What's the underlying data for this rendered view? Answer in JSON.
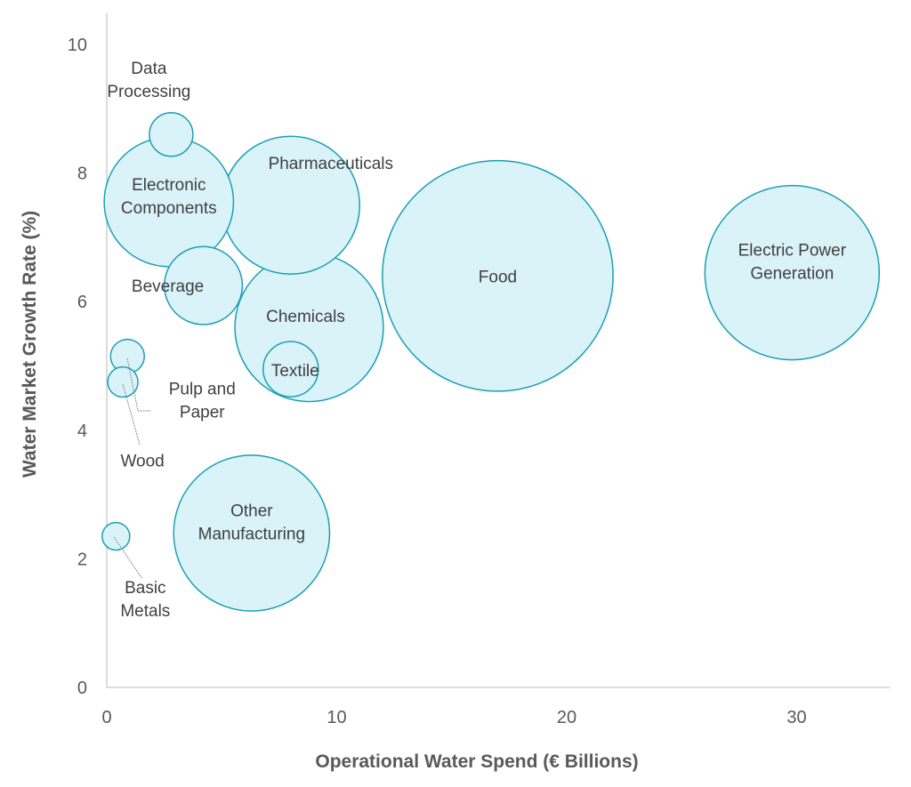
{
  "chart_data": {
    "type": "bubble",
    "xlabel": "Operational Water Spend (€ Billions)",
    "ylabel": "Water Market Growth Rate (%)",
    "xlim": [
      0,
      34
    ],
    "ylim": [
      0,
      10
    ],
    "xticks": [
      "0",
      "10",
      "20",
      "30"
    ],
    "yticks": [
      "0",
      "2",
      "4",
      "6",
      "8",
      "10"
    ],
    "grid": false,
    "colors": {
      "fill": "#daf3f8",
      "stroke": "#1a9fb5",
      "text": "#404040",
      "axis": "#595959"
    },
    "points": [
      {
        "label": [
          "Data",
          "Processing"
        ],
        "x": 2.8,
        "y": 8.6,
        "size": 0.25
      },
      {
        "label": [
          "Electronic",
          "Components"
        ],
        "x": 2.7,
        "y": 7.55,
        "size": 2.2
      },
      {
        "label": [
          "Pharmaceuticals"
        ],
        "x": 8.0,
        "y": 7.5,
        "size": 2.5
      },
      {
        "label": [
          "Beverage"
        ],
        "x": 4.2,
        "y": 6.25,
        "size": 0.8
      },
      {
        "label": [
          "Chemicals"
        ],
        "x": 8.8,
        "y": 5.6,
        "size": 2.9
      },
      {
        "label": [
          "Textile"
        ],
        "x": 8.0,
        "y": 4.95,
        "size": 0.4
      },
      {
        "label": [
          "Food"
        ],
        "x": 17.0,
        "y": 6.4,
        "size": 7.0
      },
      {
        "label": [
          "Electric Power",
          "Generation"
        ],
        "x": 29.8,
        "y": 6.45,
        "size": 4.0
      },
      {
        "label": [
          "Pulp and",
          "Paper"
        ],
        "x": 0.9,
        "y": 5.15,
        "size": 0.15
      },
      {
        "label": [
          "Wood"
        ],
        "x": 0.7,
        "y": 4.75,
        "size": 0.12
      },
      {
        "label": [
          "Other",
          "Manufacturing"
        ],
        "x": 6.3,
        "y": 2.4,
        "size": 3.2
      },
      {
        "label": [
          "Basic",
          "Metals"
        ],
        "x": 0.4,
        "y": 2.35,
        "size": 0.1
      }
    ]
  }
}
